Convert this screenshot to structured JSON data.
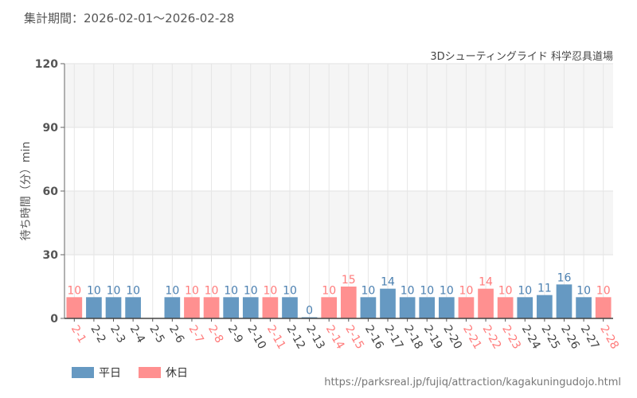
{
  "header": {
    "period": "集計期間：2026-02-01～2026-02-28",
    "attraction": "3Dシューティングライド 科学忍具道場"
  },
  "footer": {
    "url": "https://parksreal.jp/fujiq/attraction/kagakuningudojo.html"
  },
  "colors": {
    "weekday": "#6699c2",
    "holiday": "#ff9090",
    "weekday_text": "#4a7fb0",
    "holiday_text": "#ff7b7b"
  },
  "chart_data": {
    "type": "bar",
    "ylabel": "待ち時間（分）min",
    "ylim": [
      0,
      120
    ],
    "yticks": [
      0,
      30,
      60,
      90,
      120
    ],
    "legend": [
      {
        "name": "平日",
        "key": "weekday"
      },
      {
        "name": "休日",
        "key": "holiday"
      }
    ],
    "legend_position": "bottom-left",
    "categories": [
      "2-1",
      "2-2",
      "2-3",
      "2-4",
      "2-5",
      "2-6",
      "2-7",
      "2-8",
      "2-9",
      "2-10",
      "2-11",
      "2-12",
      "2-13",
      "2-14",
      "2-15",
      "2-16",
      "2-17",
      "2-18",
      "2-19",
      "2-20",
      "2-21",
      "2-22",
      "2-23",
      "2-24",
      "2-25",
      "2-26",
      "2-27",
      "2-28"
    ],
    "values": [
      10,
      10,
      10,
      10,
      null,
      10,
      10,
      10,
      10,
      10,
      10,
      10,
      0,
      10,
      15,
      10,
      14,
      10,
      10,
      10,
      10,
      14,
      10,
      10,
      11,
      16,
      10,
      10
    ],
    "holiday": [
      true,
      false,
      false,
      false,
      false,
      false,
      true,
      true,
      false,
      false,
      true,
      false,
      false,
      true,
      true,
      false,
      false,
      false,
      false,
      false,
      true,
      true,
      true,
      false,
      false,
      false,
      false,
      true
    ]
  }
}
